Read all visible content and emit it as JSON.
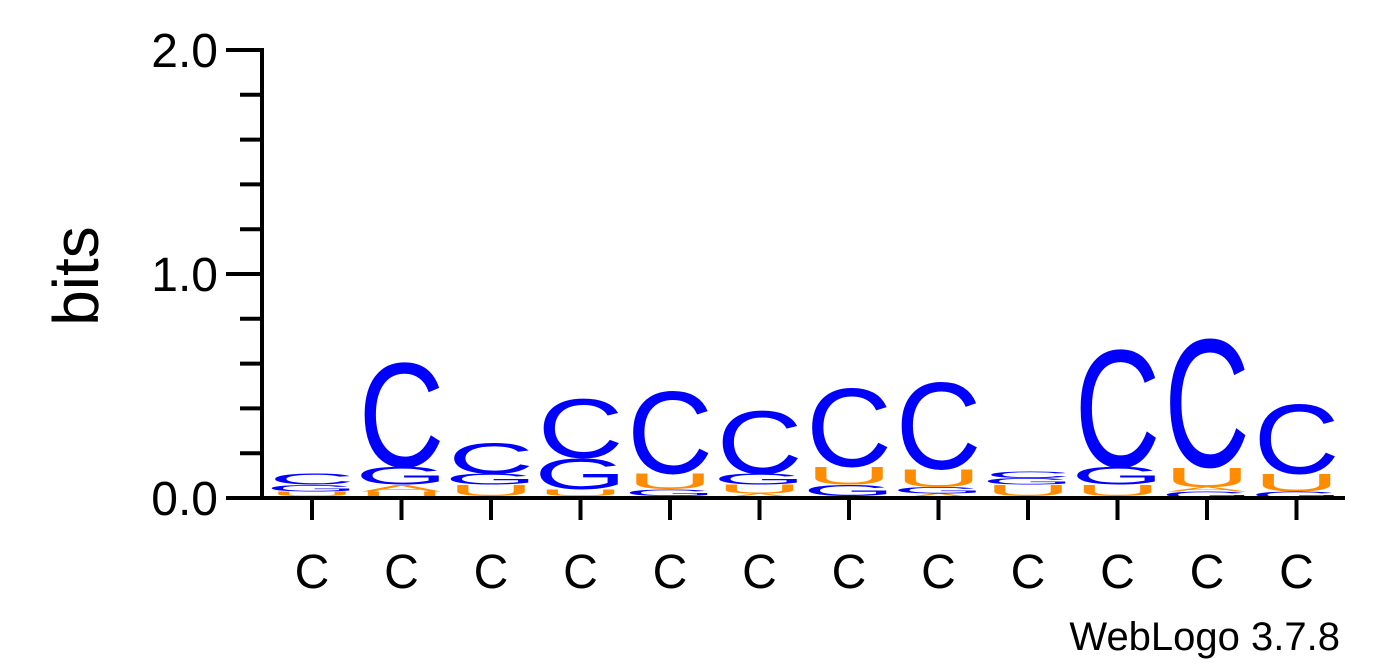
{
  "chart_data": {
    "type": "sequence_logo",
    "ylabel": "bits",
    "ylim": [
      0,
      2.0
    ],
    "y_ticks": [
      "0.0",
      "1.0",
      "2.0"
    ],
    "colors": {
      "C": "#0000ff",
      "G": "#0000ff",
      "U": "#ff8c00",
      "A": "#ff8c00"
    },
    "positions": [
      {
        "label": "C",
        "stack": [
          {
            "base": "A",
            "bits": 0.01
          },
          {
            "base": "U",
            "bits": 0.02
          },
          {
            "base": "G",
            "bits": 0.03
          },
          {
            "base": "C",
            "bits": 0.05
          }
        ]
      },
      {
        "label": "C",
        "stack": [
          {
            "base": "U",
            "bits": 0.03
          },
          {
            "base": "A",
            "bits": 0.03
          },
          {
            "base": "G",
            "bits": 0.08
          },
          {
            "base": "C",
            "bits": 0.48
          }
        ]
      },
      {
        "label": "C",
        "stack": [
          {
            "base": "A",
            "bits": 0.01
          },
          {
            "base": "U",
            "bits": 0.05
          },
          {
            "base": "G",
            "bits": 0.05
          },
          {
            "base": "C",
            "bits": 0.14
          }
        ]
      },
      {
        "label": "C",
        "stack": [
          {
            "base": "A",
            "bits": 0.01
          },
          {
            "base": "U",
            "bits": 0.03
          },
          {
            "base": "G",
            "bits": 0.14
          },
          {
            "base": "C",
            "bits": 0.27
          }
        ]
      },
      {
        "label": "C",
        "stack": [
          {
            "base": "A",
            "bits": 0.01
          },
          {
            "base": "G",
            "bits": 0.03
          },
          {
            "base": "U",
            "bits": 0.07
          },
          {
            "base": "C",
            "bits": 0.38
          }
        ]
      },
      {
        "label": "C",
        "stack": [
          {
            "base": "A",
            "bits": 0.02
          },
          {
            "base": "U",
            "bits": 0.04
          },
          {
            "base": "G",
            "bits": 0.05
          },
          {
            "base": "C",
            "bits": 0.29
          }
        ]
      },
      {
        "label": "C",
        "stack": [
          {
            "base": "A",
            "bits": 0.01
          },
          {
            "base": "G",
            "bits": 0.05
          },
          {
            "base": "U",
            "bits": 0.08
          },
          {
            "base": "C",
            "bits": 0.36
          }
        ]
      },
      {
        "label": "C",
        "stack": [
          {
            "base": "A",
            "bits": 0.02
          },
          {
            "base": "G",
            "bits": 0.03
          },
          {
            "base": "U",
            "bits": 0.08
          },
          {
            "base": "C",
            "bits": 0.4
          }
        ]
      },
      {
        "label": "C",
        "stack": [
          {
            "base": "A",
            "bits": 0.01
          },
          {
            "base": "U",
            "bits": 0.05
          },
          {
            "base": "G",
            "bits": 0.03
          },
          {
            "base": "C",
            "bits": 0.03
          }
        ]
      },
      {
        "label": "C",
        "stack": [
          {
            "base": "A",
            "bits": 0.01
          },
          {
            "base": "U",
            "bits": 0.05
          },
          {
            "base": "G",
            "bits": 0.08
          },
          {
            "base": "C",
            "bits": 0.54
          }
        ]
      },
      {
        "label": "C",
        "stack": [
          {
            "base": "G",
            "bits": 0.03
          },
          {
            "base": "A",
            "bits": 0.02
          },
          {
            "base": "U",
            "bits": 0.09
          },
          {
            "base": "C",
            "bits": 0.59
          }
        ]
      },
      {
        "label": "C",
        "stack": [
          {
            "base": "G",
            "bits": 0.03
          },
          {
            "base": "U",
            "bits": 0.08
          },
          {
            "base": "C",
            "bits": 0.32
          }
        ]
      }
    ]
  },
  "footer": {
    "text": "WebLogo 3.7.8"
  }
}
